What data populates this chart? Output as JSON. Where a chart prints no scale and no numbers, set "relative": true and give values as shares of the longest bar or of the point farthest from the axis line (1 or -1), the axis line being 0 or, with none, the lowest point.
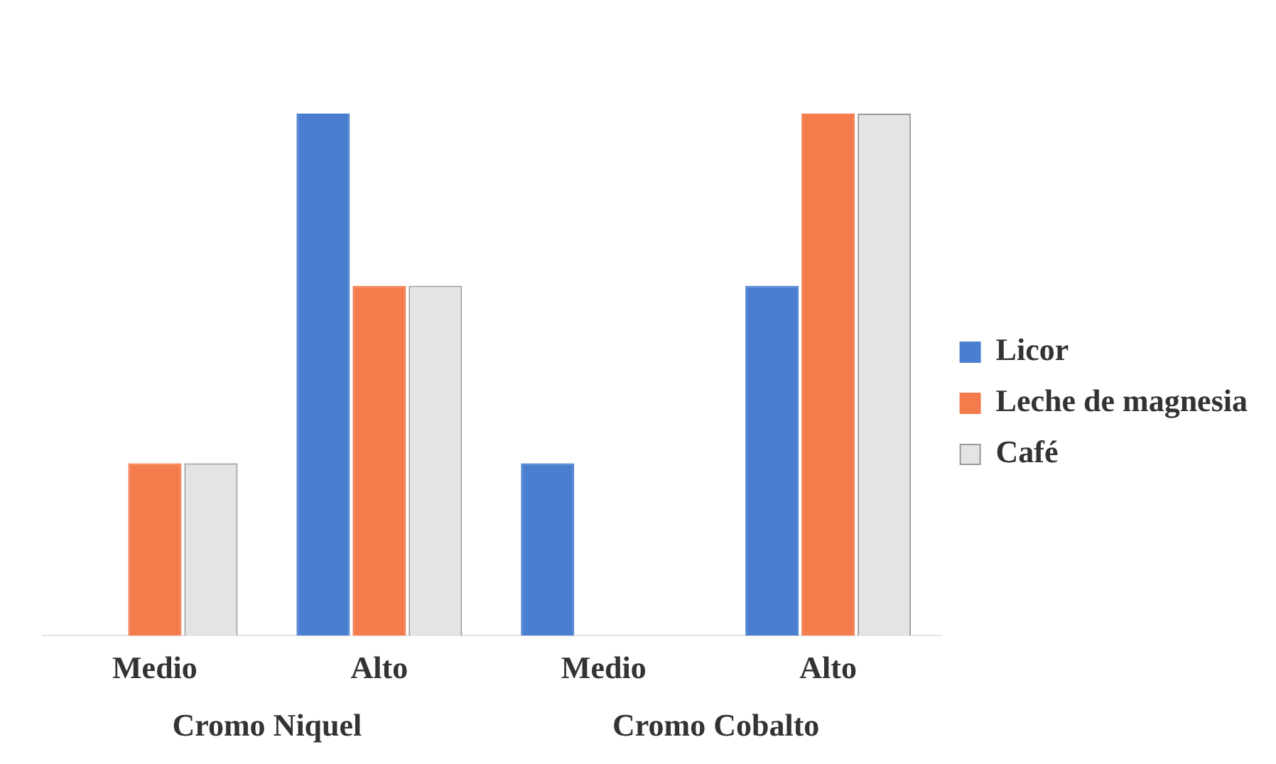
{
  "chart_data": {
    "type": "bar",
    "relative": true,
    "categories": [
      "Medio",
      "Alto",
      "Medio",
      "Alto"
    ],
    "series": [
      {
        "name": "Licor",
        "color": "#4a7fd0",
        "values": [
          0,
          1,
          0.33,
          0.67
        ]
      },
      {
        "name": "Leche de magnesia",
        "color": "#f47b4c",
        "values": [
          0.33,
          0.67,
          0,
          1
        ]
      },
      {
        "name": "Café",
        "color": "#e4e4e4",
        "values": [
          0.33,
          0.67,
          0,
          1
        ]
      }
    ],
    "annotations": [
      "Cromo Niquel",
      "Cromo Cobalto"
    ],
    "grid": false,
    "legend": "right"
  }
}
